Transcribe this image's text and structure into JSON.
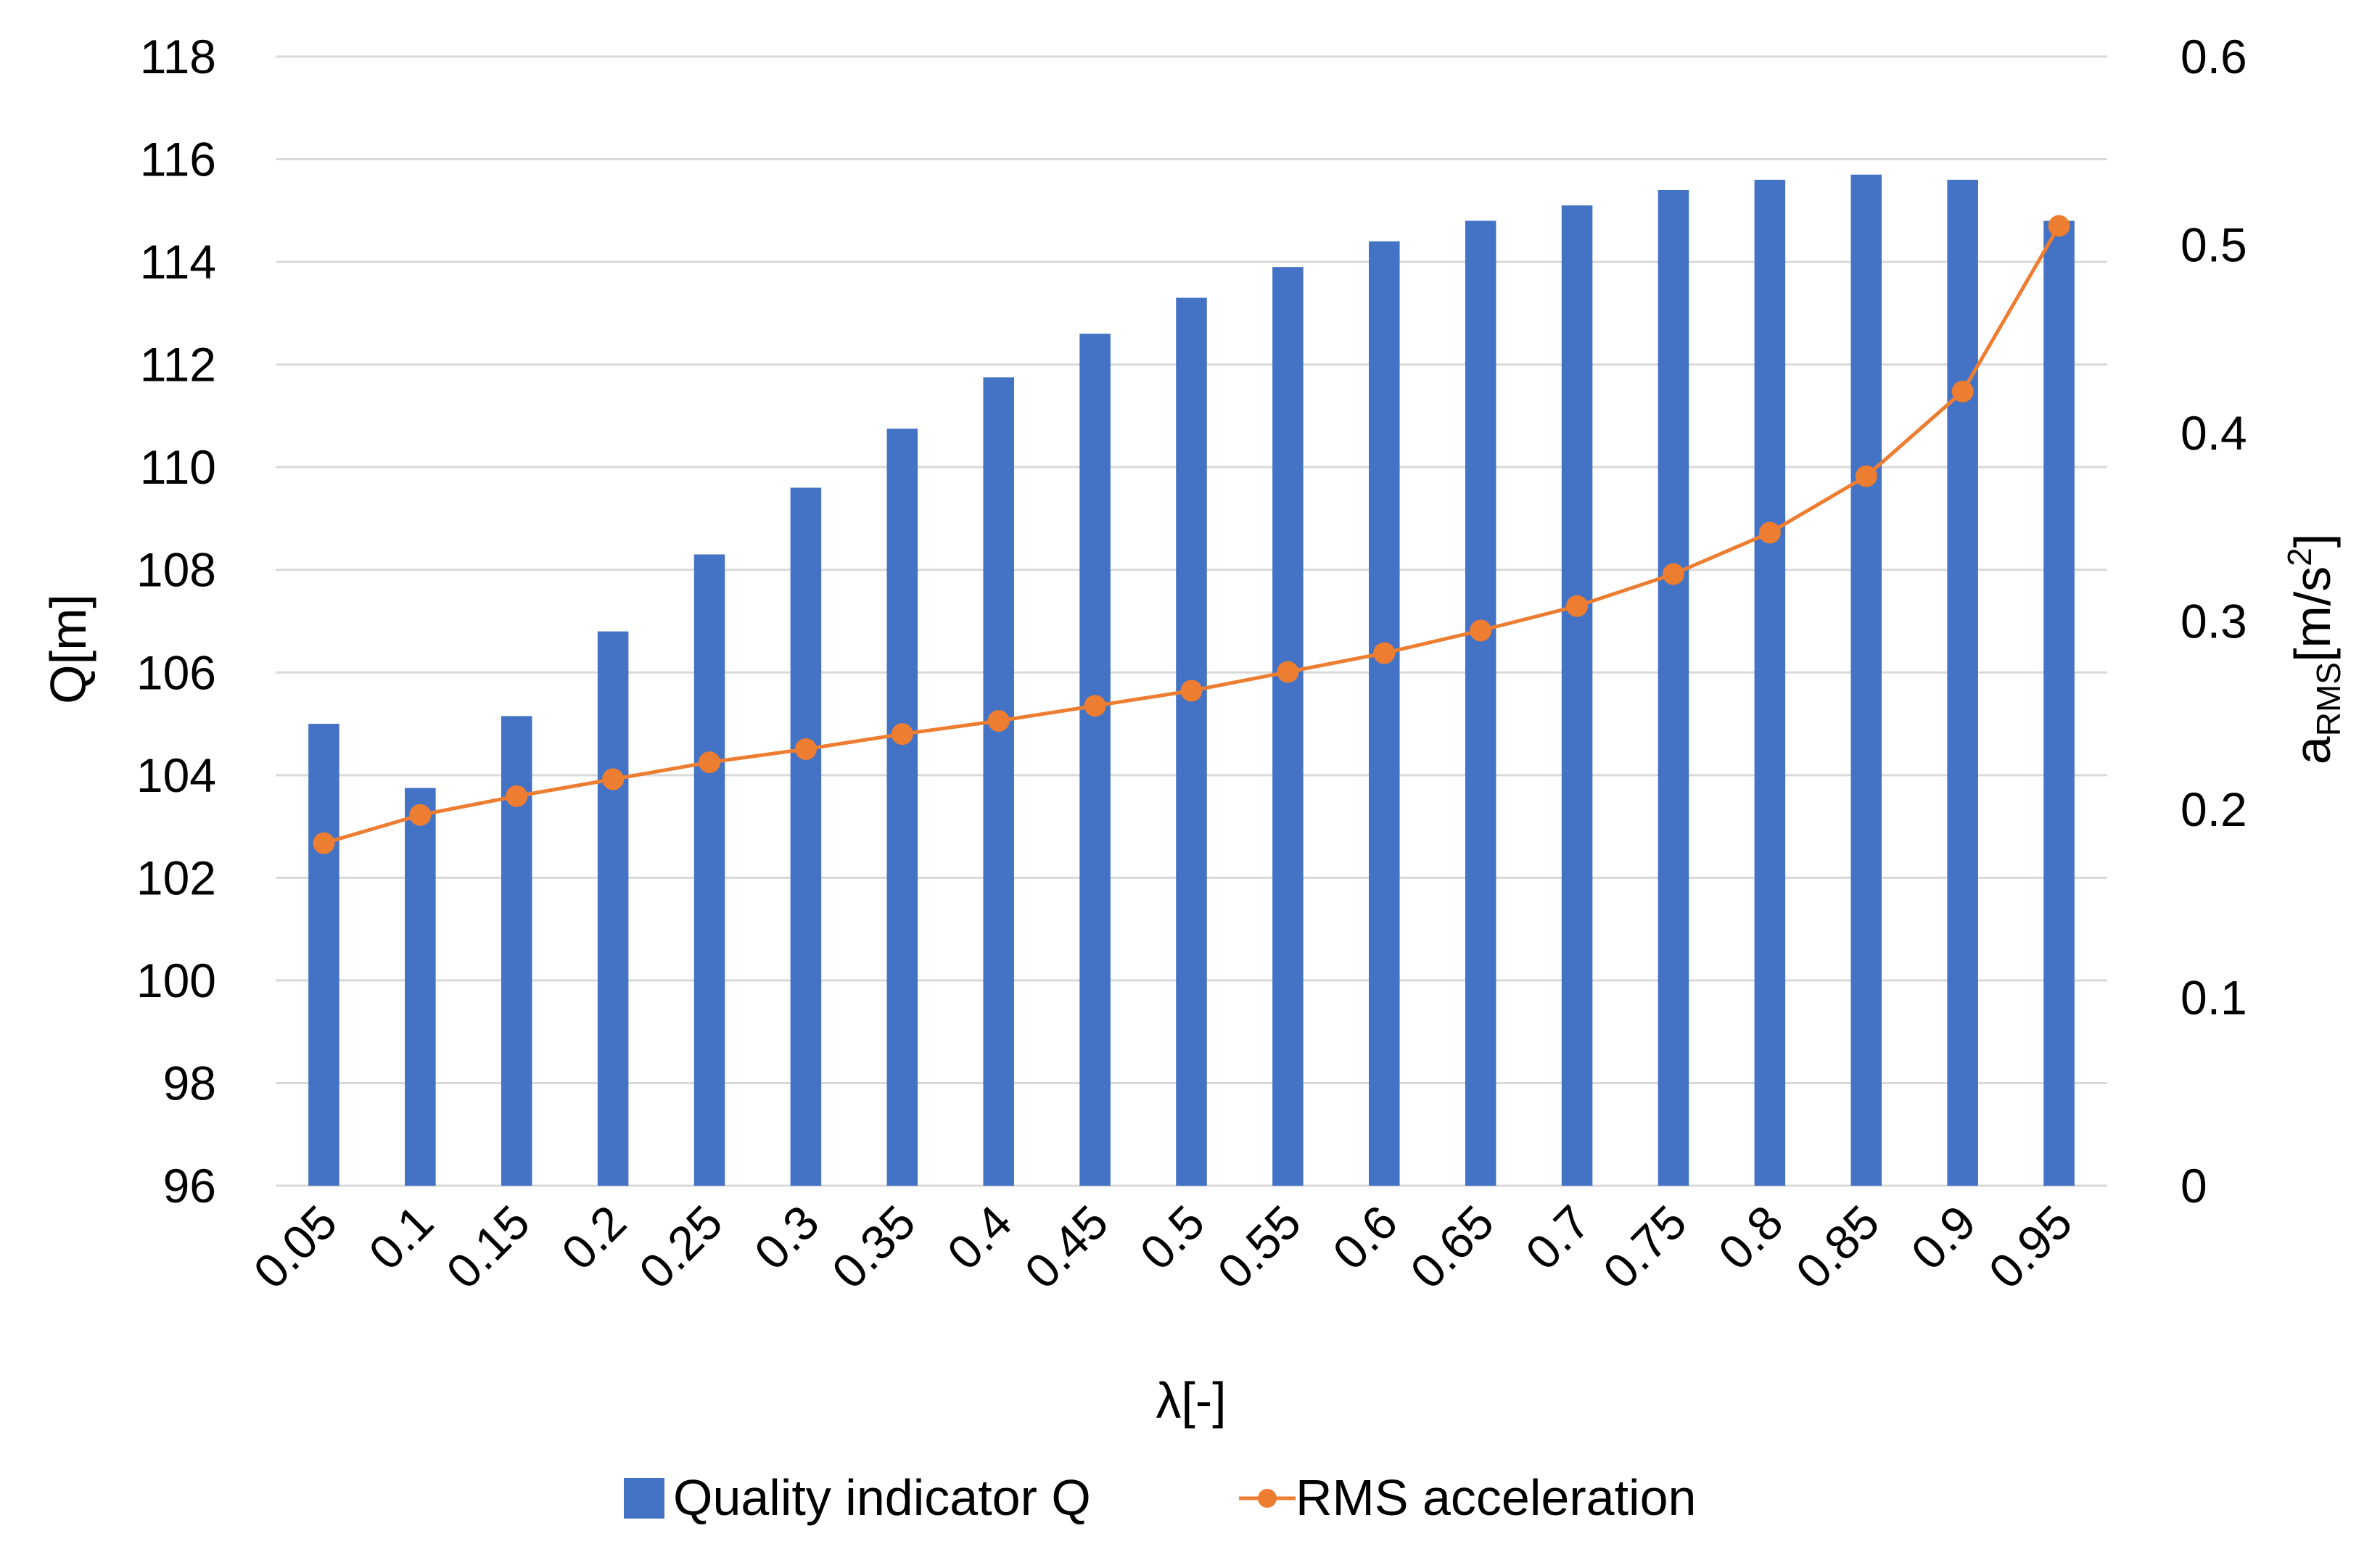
{
  "chart_data": {
    "type": "bar",
    "categories": [
      "0.05",
      "0.1",
      "0.15",
      "0.2",
      "0.25",
      "0.3",
      "0.35",
      "0.4",
      "0.45",
      "0.5",
      "0.55",
      "0.6",
      "0.65",
      "0.7",
      "0.75",
      "0.8",
      "0.85",
      "0.9",
      "0.95"
    ],
    "series": [
      {
        "name": "Quality indicator Q",
        "kind": "bar",
        "axis": "left",
        "color": "#4472c4",
        "values": [
          105.0,
          103.75,
          105.15,
          106.8,
          108.3,
          109.6,
          110.75,
          111.75,
          112.6,
          113.3,
          113.9,
          114.4,
          114.8,
          115.1,
          115.4,
          115.6,
          115.7,
          115.6,
          114.8
        ]
      },
      {
        "name": "RMS acceleration",
        "kind": "line",
        "axis": "right",
        "color": "#ed7d31",
        "values": [
          0.182,
          0.197,
          0.207,
          0.216,
          0.225,
          0.232,
          0.24,
          0.247,
          0.255,
          0.263,
          0.273,
          0.283,
          0.295,
          0.308,
          0.325,
          0.347,
          0.377,
          0.422,
          0.51
        ]
      }
    ],
    "xlabel": "λ[-]",
    "ylabel": "Q[m]",
    "y2label_main": "a",
    "y2label_sub": "RMS",
    "y2label_unit": "[m/s",
    "y2label_sup": "2",
    "y2label_close": "]",
    "ylim": [
      96,
      118
    ],
    "yticks": [
      "96",
      "98",
      "100",
      "102",
      "104",
      "106",
      "108",
      "110",
      "112",
      "114",
      "116",
      "118"
    ],
    "y2lim": [
      0,
      0.6
    ],
    "y2ticks": [
      "0",
      "0.1",
      "0.2",
      "0.3",
      "0.4",
      "0.5",
      "0.6"
    ],
    "grid": true,
    "legend_position": "bottom"
  }
}
